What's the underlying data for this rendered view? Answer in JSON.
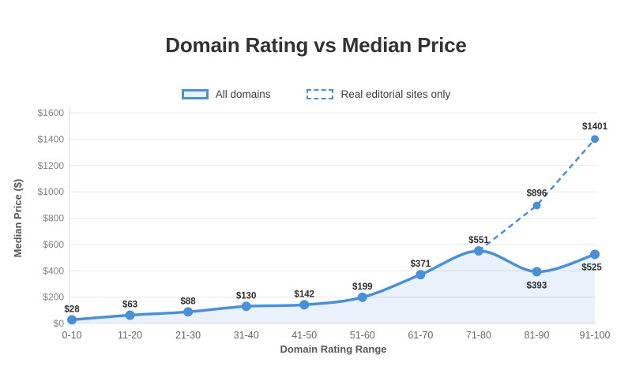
{
  "title": "Domain Rating vs Median Price",
  "legend": [
    {
      "label": "All domains",
      "style": "solid"
    },
    {
      "label": "Real editorial sites only",
      "style": "dashed"
    }
  ],
  "colors": {
    "line": "#4a90d9",
    "area_fill": "rgba(74,144,217,0.12)",
    "grid": "#e9e9e9",
    "axis_border": "#dddddd",
    "ytick_text": "#808080",
    "xtick_text": "#666666",
    "axis_title_text": "#595959",
    "data_label_text": "#2f2f2f",
    "title_text": "#333333"
  },
  "chart_data": {
    "type": "line",
    "title": "Domain Rating vs Median Price",
    "xlabel": "Domain Rating Range",
    "ylabel": "Median Price ($)",
    "categories": [
      "0-10",
      "11-20",
      "21-30",
      "31-40",
      "41-50",
      "51-60",
      "61-70",
      "71-80",
      "81-90",
      "91-100"
    ],
    "series": [
      {
        "name": "All domains",
        "style": "solid-area",
        "values": [
          28,
          63,
          88,
          130,
          142,
          199,
          371,
          551,
          393,
          525
        ],
        "labels": [
          "$28",
          "$63",
          "$88",
          "$130",
          "$142",
          "$199",
          "$371",
          "$551",
          "$393",
          "$525"
        ],
        "label_default": [
          0,
          -10
        ],
        "label_offsets": {
          "8": [
            0,
            21
          ],
          "9": [
            -4,
            20
          ]
        }
      },
      {
        "name": "Real editorial sites only",
        "style": "dashed",
        "x_start_index": 7,
        "values": [
          551,
          896,
          1401
        ],
        "labels": [
          null,
          "$896",
          "$1401"
        ],
        "label_default": [
          0,
          -12
        ],
        "label_offsets": {}
      }
    ],
    "ylim": [
      0,
      1600
    ],
    "ytick_step": 200,
    "yticks": [
      "$0",
      "$200",
      "$400",
      "$600",
      "$800",
      "$1000",
      "$1200",
      "$1400",
      "$1600"
    ],
    "grid": true,
    "legend_position": "top"
  }
}
